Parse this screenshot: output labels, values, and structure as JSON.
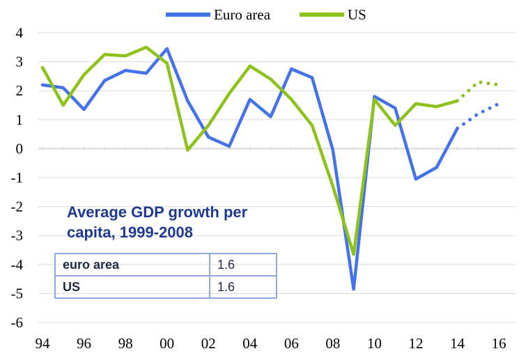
{
  "chart_data": {
    "type": "line",
    "x": [
      1994,
      1995,
      1996,
      1997,
      1998,
      1999,
      2000,
      2001,
      2002,
      2003,
      2004,
      2005,
      2006,
      2007,
      2008,
      2009,
      2010,
      2011,
      2012,
      2013,
      2014,
      2015,
      2016
    ],
    "series": [
      {
        "name": "Euro area",
        "color": "#4472e8",
        "values": [
          2.2,
          2.1,
          1.35,
          2.35,
          2.7,
          2.6,
          3.45,
          1.65,
          0.4,
          0.08,
          1.7,
          1.1,
          2.75,
          2.45,
          -0.05,
          -4.85,
          1.8,
          1.4,
          -1.05,
          -0.65,
          0.7,
          1.2,
          1.55
        ],
        "forecast_from": 2014
      },
      {
        "name": "US",
        "color": "#8cc21b",
        "values": [
          2.8,
          1.5,
          2.55,
          3.25,
          3.2,
          3.5,
          2.95,
          -0.05,
          0.8,
          1.9,
          2.85,
          2.4,
          1.7,
          0.8,
          -1.3,
          -3.65,
          1.7,
          0.8,
          1.55,
          1.45,
          1.65,
          2.3,
          2.2
        ],
        "forecast_from": 2014
      }
    ],
    "ylim": [
      -6,
      4
    ],
    "yticks": [
      "4",
      "3",
      "2",
      "1",
      "0",
      "-1",
      "-2",
      "-3",
      "-4",
      "-5",
      "-6"
    ],
    "xlim": [
      1993.8,
      2016.8
    ],
    "xtick_values": [
      1994,
      1996,
      1998,
      2000,
      2002,
      2004,
      2006,
      2008,
      2010,
      2012,
      2014,
      2016
    ],
    "xtick_labels": [
      "94",
      "96",
      "98",
      "00",
      "02",
      "04",
      "06",
      "08",
      "10",
      "12",
      "14",
      "16"
    ],
    "legend_position": "top",
    "grid": "horizontal"
  },
  "inset": {
    "title_line1": "Average GDP growth per",
    "title_line2": "capita, 1999-2008",
    "rows": [
      {
        "name": "euro area",
        "value": "1.6"
      },
      {
        "name": "US",
        "value": "1.6"
      }
    ]
  }
}
